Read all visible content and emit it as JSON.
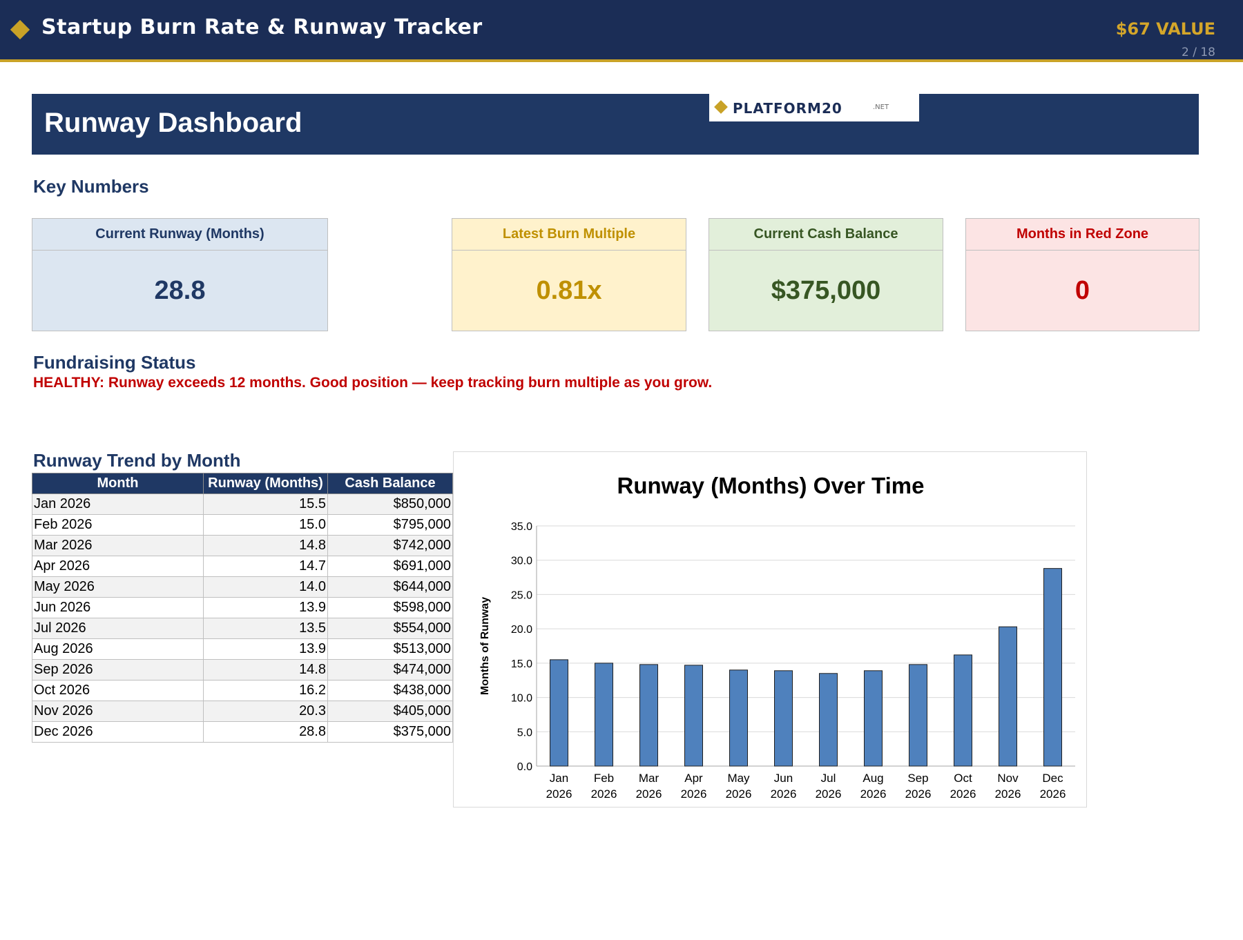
{
  "header": {
    "title": "Startup Burn Rate & Runway Tracker",
    "value_badge": "$67 VALUE",
    "page_indicator": "2 / 18"
  },
  "banner": {
    "title": "Runway Dashboard",
    "logo_name": "PLATFORM20",
    "logo_suffix": ".NET"
  },
  "key_numbers": {
    "heading": "Key Numbers",
    "cards": [
      {
        "label": "Current Runway (Months)",
        "value": "28.8",
        "color": "#1f3864"
      },
      {
        "label": "Latest Burn Multiple",
        "value": "0.81x",
        "color": "#bf9000"
      },
      {
        "label": "Current Cash Balance",
        "value": "$375,000",
        "color": "#375623"
      },
      {
        "label": "Months in Red Zone",
        "value": "0",
        "color": "#c00000"
      }
    ]
  },
  "fundraising": {
    "heading": "Fundraising Status",
    "message": "HEALTHY: Runway exceeds 12 months. Good position — keep tracking burn multiple as you grow."
  },
  "trend_table": {
    "heading": "Runway Trend by Month",
    "columns": [
      "Month",
      "Runway (Months)",
      "Cash Balance"
    ],
    "rows": [
      [
        "Jan 2026",
        "15.5",
        "$850,000"
      ],
      [
        "Feb 2026",
        "15.0",
        "$795,000"
      ],
      [
        "Mar 2026",
        "14.8",
        "$742,000"
      ],
      [
        "Apr 2026",
        "14.7",
        "$691,000"
      ],
      [
        "May 2026",
        "14.0",
        "$644,000"
      ],
      [
        "Jun 2026",
        "13.9",
        "$598,000"
      ],
      [
        "Jul 2026",
        "13.5",
        "$554,000"
      ],
      [
        "Aug 2026",
        "13.9",
        "$513,000"
      ],
      [
        "Sep 2026",
        "14.8",
        "$474,000"
      ],
      [
        "Oct 2026",
        "16.2",
        "$438,000"
      ],
      [
        "Nov 2026",
        "20.3",
        "$405,000"
      ],
      [
        "Dec 2026",
        "28.8",
        "$375,000"
      ]
    ]
  },
  "chart_data": {
    "type": "bar",
    "title": "Runway (Months) Over Time",
    "xlabel": "",
    "ylabel": "Months of Runway",
    "categories": [
      [
        "Jan",
        "2026"
      ],
      [
        "Feb",
        "2026"
      ],
      [
        "Mar",
        "2026"
      ],
      [
        "Apr",
        "2026"
      ],
      [
        "May",
        "2026"
      ],
      [
        "Jun",
        "2026"
      ],
      [
        "Jul",
        "2026"
      ],
      [
        "Aug",
        "2026"
      ],
      [
        "Sep",
        "2026"
      ],
      [
        "Oct",
        "2026"
      ],
      [
        "Nov",
        "2026"
      ],
      [
        "Dec",
        "2026"
      ]
    ],
    "values": [
      15.5,
      15.0,
      14.8,
      14.7,
      14.0,
      13.9,
      13.5,
      13.9,
      14.8,
      16.2,
      20.3,
      28.8
    ],
    "ylim": [
      0,
      35
    ],
    "yticks": [
      "0.0",
      "5.0",
      "10.0",
      "15.0",
      "20.0",
      "25.0",
      "30.0",
      "35.0"
    ],
    "grid": true,
    "legend": "none",
    "bar_color": "#4f81bd"
  }
}
